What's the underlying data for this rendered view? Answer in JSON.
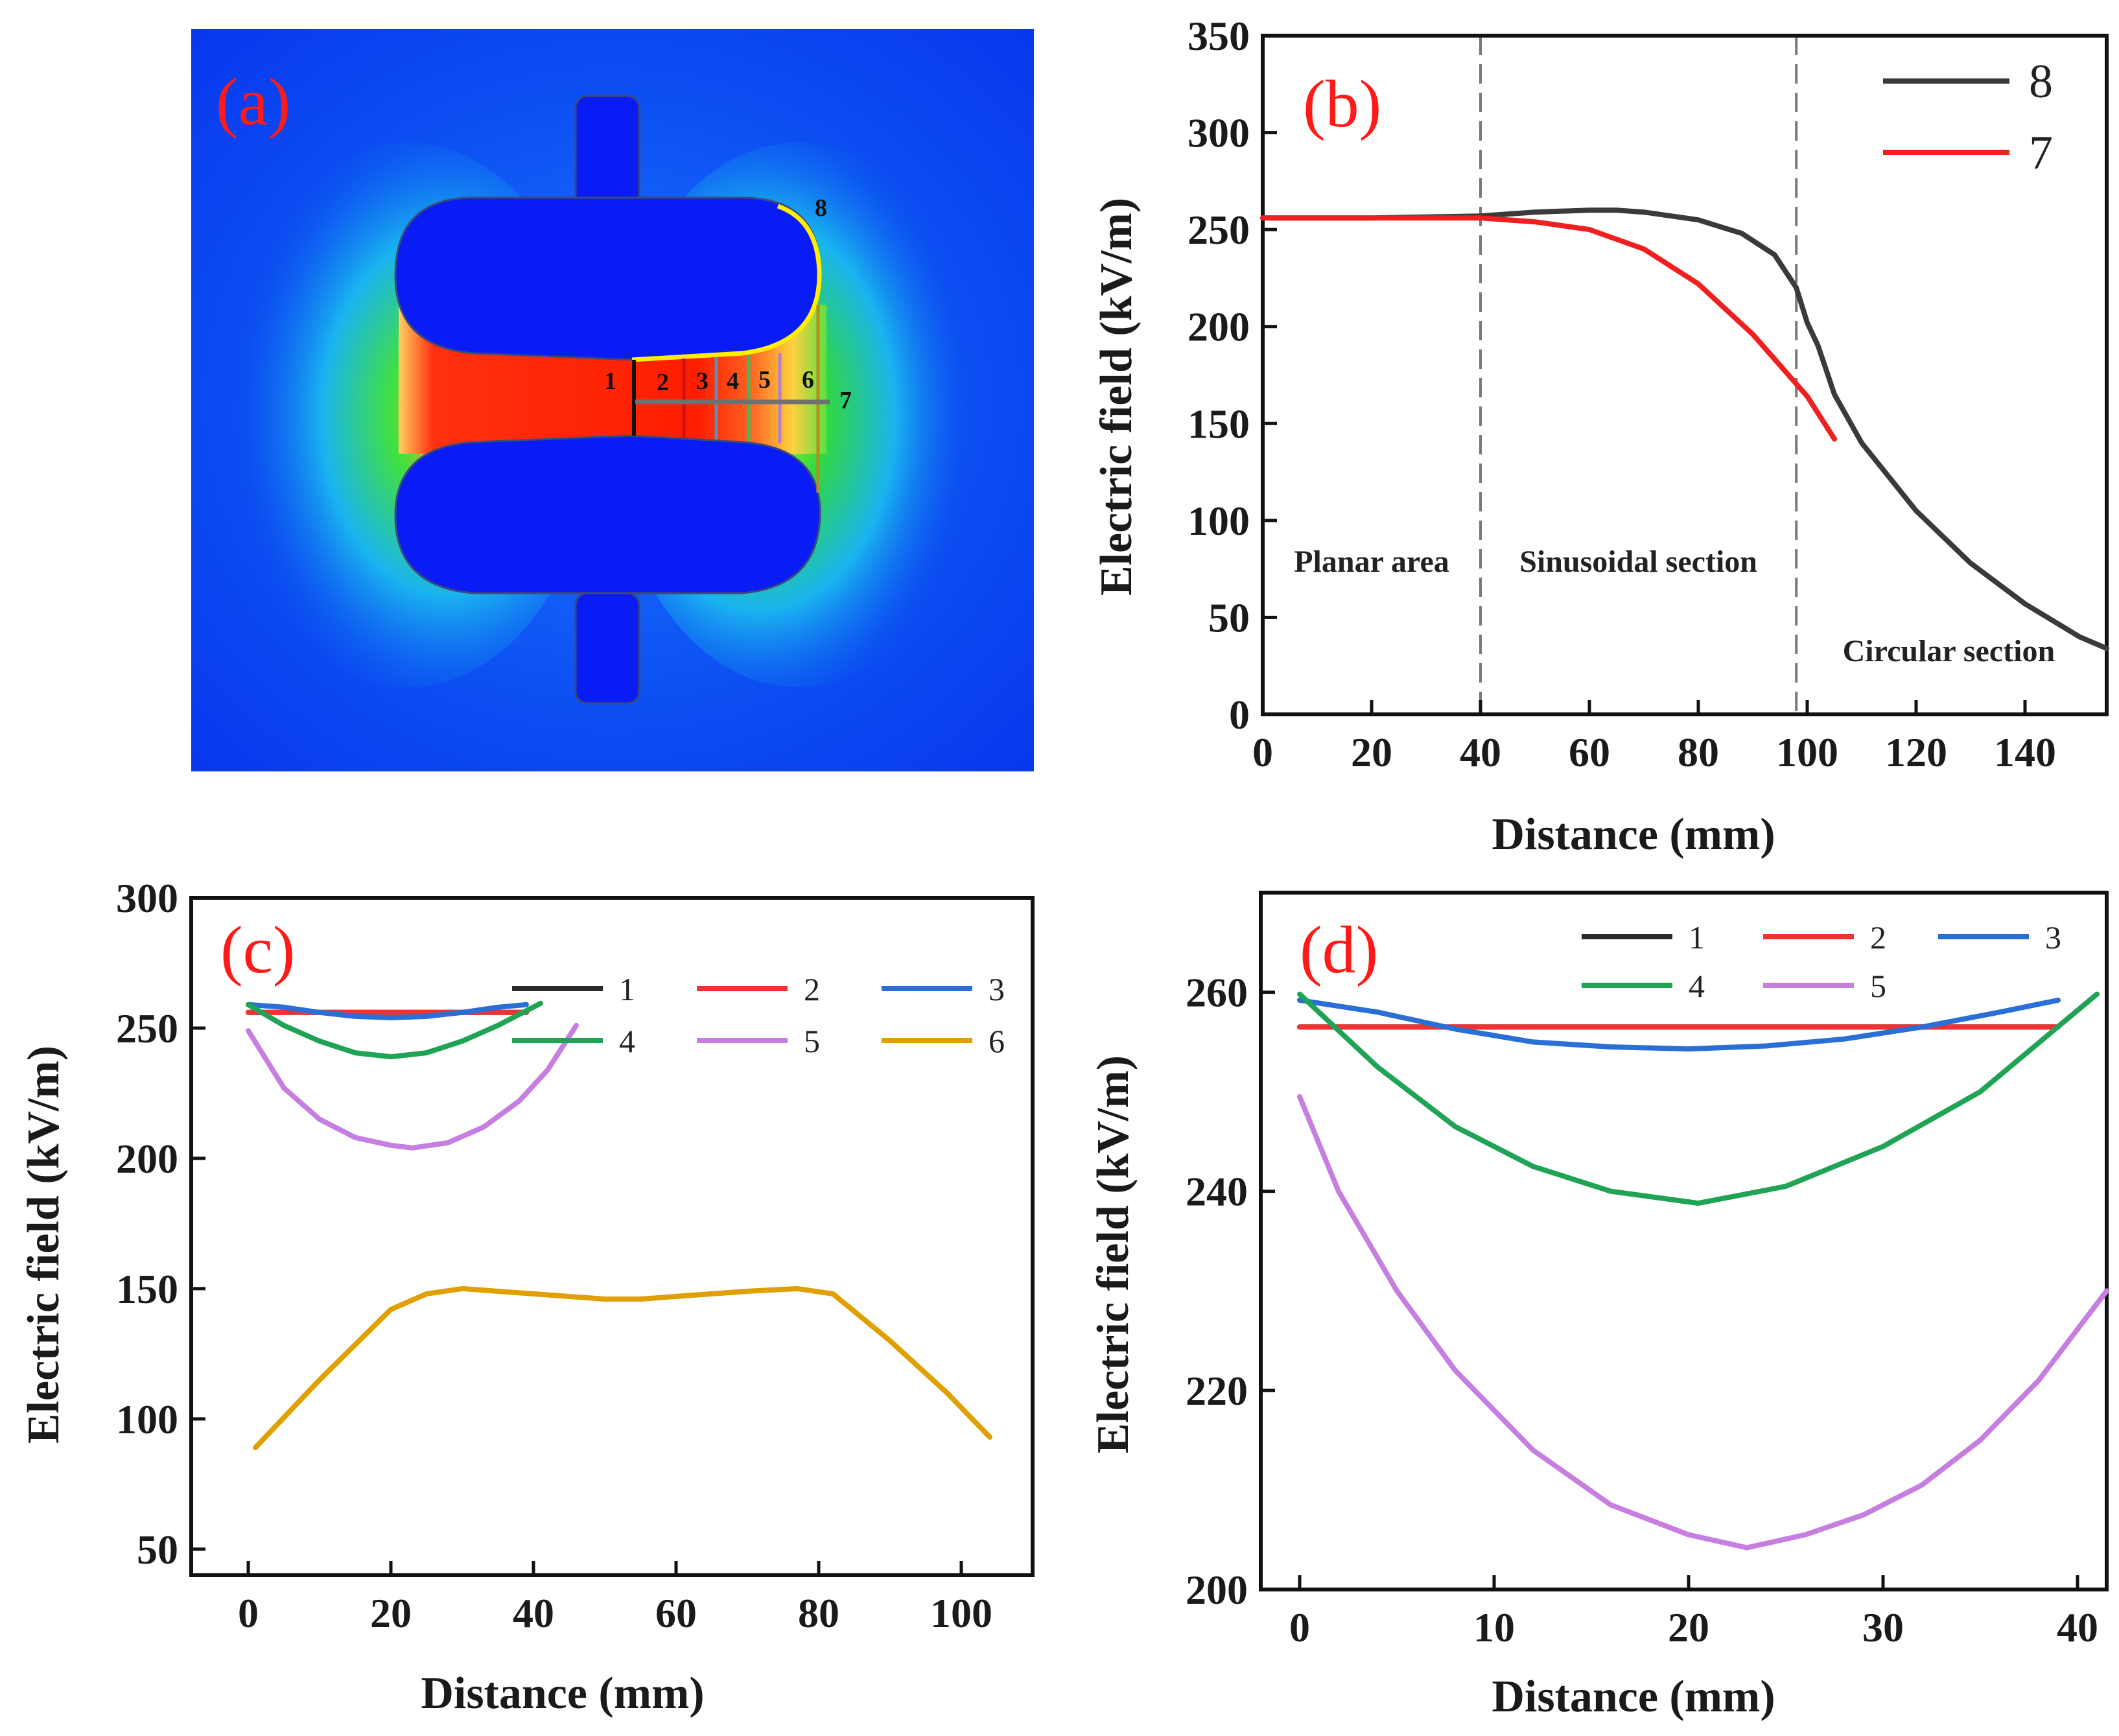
{
  "panels": {
    "a": {
      "letter": "(a)",
      "line_labels": [
        "1",
        "2",
        "3",
        "4",
        "5",
        "6",
        "7",
        "8"
      ],
      "colors": {
        "background": "#0a3cf0",
        "electrode": "#0a1cf5",
        "high_field": "#ff1e00",
        "mid_field": "#20d020",
        "low_field": "#1aa0ff"
      }
    }
  },
  "chart_data": [
    {
      "panel": "b",
      "type": "line",
      "letter": "(b)",
      "xlabel": "Distance (mm)",
      "ylabel": "Electric field (kV/m)",
      "xlim": [
        0,
        155
      ],
      "ylim": [
        0,
        350
      ],
      "xticks": [
        0,
        20,
        40,
        60,
        80,
        100,
        120,
        140
      ],
      "yticks": [
        0,
        50,
        100,
        150,
        200,
        250,
        300,
        350
      ],
      "vlines": [
        40,
        98
      ],
      "regions": [
        {
          "label": "Planar area",
          "x": 20
        },
        {
          "label": "Sinusoidal section",
          "x": 69
        },
        {
          "label": "Circular section",
          "x": 126
        }
      ],
      "legend_position": "top-right",
      "series": [
        {
          "name": "8",
          "color": "#3a3a3a",
          "x": [
            0,
            20,
            40,
            50,
            60,
            65,
            70,
            80,
            88,
            94,
            98,
            100,
            102,
            105,
            110,
            120,
            130,
            140,
            150,
            155
          ],
          "y": [
            256,
            256,
            257,
            259,
            260,
            260,
            259,
            255,
            248,
            237,
            220,
            202,
            190,
            165,
            140,
            105,
            78,
            57,
            40,
            34
          ]
        },
        {
          "name": "7",
          "color": "#f02020",
          "x": [
            0,
            20,
            40,
            50,
            60,
            70,
            80,
            90,
            100,
            105
          ],
          "y": [
            256,
            256,
            256,
            254,
            250,
            240,
            222,
            196,
            164,
            142
          ]
        }
      ]
    },
    {
      "panel": "c",
      "type": "line",
      "letter": "(c)",
      "xlabel": "Distance (mm)",
      "ylabel": "Electric field (kV/m)",
      "xlim": [
        -8,
        110
      ],
      "ylim": [
        40,
        300
      ],
      "xticks": [
        0,
        20,
        40,
        60,
        80,
        100
      ],
      "yticks": [
        50,
        100,
        150,
        200,
        250,
        300
      ],
      "legend_position": "top-right",
      "series": [
        {
          "name": "1",
          "color": "#2a2a2a",
          "x": [
            0,
            39
          ],
          "y": [
            256,
            256
          ]
        },
        {
          "name": "2",
          "color": "#f03232",
          "x": [
            0,
            39
          ],
          "y": [
            256,
            256
          ]
        },
        {
          "name": "3",
          "color": "#2a6fd6",
          "x": [
            0,
            5,
            10,
            15,
            20,
            25,
            30,
            35,
            39
          ],
          "y": [
            259,
            258,
            256,
            254.5,
            254,
            254.5,
            256,
            258,
            259
          ]
        },
        {
          "name": "4",
          "color": "#1fa355",
          "x": [
            0,
            5,
            10,
            15,
            20,
            25,
            30,
            35,
            41
          ],
          "y": [
            259,
            251,
            245,
            240.5,
            239,
            240.5,
            245,
            251,
            259.5
          ]
        },
        {
          "name": "5",
          "color": "#c67ee0",
          "x": [
            0,
            5,
            10,
            15,
            20,
            23,
            28,
            33,
            38,
            42,
            46
          ],
          "y": [
            249,
            227,
            215,
            208,
            205,
            204,
            206,
            212,
            222,
            234,
            251
          ]
        },
        {
          "name": "6",
          "color": "#e0a000",
          "x": [
            1,
            10,
            20,
            25,
            30,
            40,
            50,
            55,
            60,
            70,
            77,
            82,
            90,
            98,
            104
          ],
          "y": [
            89,
            115,
            142,
            148,
            150,
            148,
            146,
            146,
            147,
            149,
            150,
            148,
            130,
            110,
            93
          ]
        }
      ]
    },
    {
      "panel": "d",
      "type": "line",
      "letter": "(d)",
      "xlabel": "Distance (mm)",
      "ylabel": "Electric field (kV/m)",
      "xlim": [
        -2,
        41.5
      ],
      "ylim": [
        200,
        270
      ],
      "xticks": [
        0,
        10,
        20,
        30,
        40
      ],
      "yticks": [
        200,
        220,
        240,
        260
      ],
      "legend_position": "top-right",
      "series": [
        {
          "name": "1",
          "color": "#2a2a2a",
          "x": [
            0,
            39
          ],
          "y": [
            256.5,
            256.5
          ]
        },
        {
          "name": "2",
          "color": "#f03232",
          "x": [
            0,
            39
          ],
          "y": [
            256.5,
            256.5
          ]
        },
        {
          "name": "3",
          "color": "#2a6fd6",
          "x": [
            0,
            4,
            8,
            12,
            16,
            20,
            24,
            28,
            32,
            36,
            39
          ],
          "y": [
            259.2,
            258,
            256.3,
            255,
            254.5,
            254.3,
            254.6,
            255.3,
            256.5,
            258,
            259.2
          ]
        },
        {
          "name": "4",
          "color": "#1fa355",
          "x": [
            0,
            4,
            8,
            12,
            16,
            20.5,
            25,
            30,
            35,
            41
          ],
          "y": [
            259.8,
            252.5,
            246.5,
            242.5,
            240,
            238.8,
            240.5,
            244.5,
            250,
            259.8
          ]
        },
        {
          "name": "5",
          "color": "#c67ee0",
          "x": [
            0,
            2,
            5,
            8,
            12,
            16,
            20,
            23,
            26,
            29,
            32,
            35,
            38,
            41.5
          ],
          "y": [
            249.5,
            240,
            230,
            222,
            214,
            208.5,
            205.5,
            204.2,
            205.5,
            207.5,
            210.5,
            215,
            221,
            230
          ]
        }
      ]
    }
  ]
}
